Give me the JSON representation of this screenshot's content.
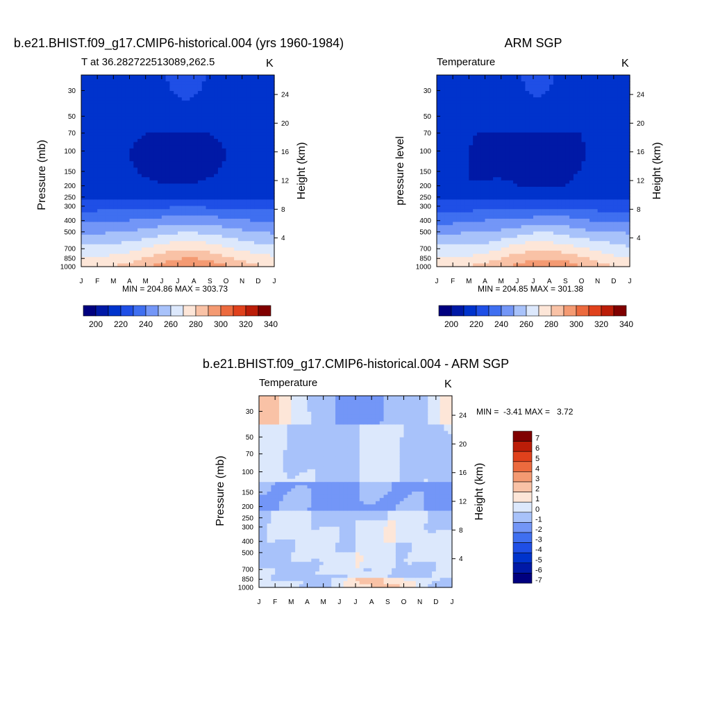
{
  "page": {
    "background": "#ffffff"
  },
  "colors": {
    "temp_scale": [
      "#00007f",
      "#0019a6",
      "#0033cc",
      "#1f4fe6",
      "#3f6ff0",
      "#7396f7",
      "#a8c2fa",
      "#dce8fc",
      "#fde6d8",
      "#f9c2a6",
      "#f49a72",
      "#ec6a3e",
      "#e0411c",
      "#bb1d08",
      "#800000"
    ],
    "diff_scale": [
      "#00007f",
      "#0019a6",
      "#0033cc",
      "#1f4fe6",
      "#3f6ff0",
      "#7396f7",
      "#a8c2fa",
      "#dce8fc",
      "#fde6d8",
      "#f9c2a6",
      "#f49a72",
      "#ec6a3e",
      "#e0411c",
      "#bb1d08",
      "#800000"
    ]
  },
  "chart_data": [
    {
      "type": "heatmap",
      "title": "b.e21.BHIST.f09_g17.CMIP6-historical.004 (yrs 1960-1984)",
      "left_title": "T at 36.282722513089,262.5",
      "units": "K",
      "ylabel": "Pressure (mb)",
      "ylabel_right": "Height (km)",
      "x_ticks": [
        "J",
        "F",
        "M",
        "A",
        "M",
        "J",
        "J",
        "A",
        "S",
        "O",
        "N",
        "D",
        "J"
      ],
      "y_ticks": [
        "30",
        "50",
        "70",
        "100",
        "150",
        "200",
        "250",
        "300",
        "400",
        "500",
        "700",
        "850",
        "1000"
      ],
      "y_ticks_right": [
        "24",
        "20",
        "16",
        "12",
        "8",
        "4"
      ],
      "min": 204.86,
      "max": 303.73,
      "minmax_text": "MIN = 204.86 MAX = 303.73",
      "colorbar_labels": [
        "200",
        "220",
        "240",
        "260",
        "280",
        "300",
        "320",
        "340"
      ]
    },
    {
      "type": "heatmap",
      "title": "ARM SGP",
      "left_title": "Temperature",
      "units": "K",
      "ylabel": "pressure level",
      "ylabel_right": "Height (km)",
      "x_ticks": [
        "J",
        "F",
        "M",
        "A",
        "M",
        "J",
        "J",
        "A",
        "S",
        "O",
        "N",
        "D",
        "J"
      ],
      "y_ticks": [
        "30",
        "50",
        "70",
        "100",
        "150",
        "200",
        "250",
        "300",
        "400",
        "500",
        "700",
        "850",
        "1000"
      ],
      "y_ticks_right": [
        "24",
        "20",
        "16",
        "12",
        "8",
        "4"
      ],
      "min": 204.85,
      "max": 301.38,
      "minmax_text": "MIN = 204.85 MAX = 301.38",
      "colorbar_labels": [
        "200",
        "220",
        "240",
        "260",
        "280",
        "300",
        "320",
        "340"
      ]
    },
    {
      "type": "heatmap",
      "title": "b.e21.BHIST.f09_g17.CMIP6-historical.004 - ARM SGP",
      "left_title": "Temperature",
      "units": "K",
      "ylabel": "Pressure (mb)",
      "ylabel_right": "Height (km)",
      "x_ticks": [
        "J",
        "F",
        "M",
        "A",
        "M",
        "J",
        "J",
        "A",
        "S",
        "O",
        "N",
        "D",
        "J"
      ],
      "y_ticks": [
        "30",
        "50",
        "70",
        "100",
        "150",
        "200",
        "250",
        "300",
        "400",
        "500",
        "700",
        "850",
        "1000"
      ],
      "y_ticks_right": [
        "24",
        "20",
        "16",
        "12",
        "8",
        "4"
      ],
      "min": -3.41,
      "max": 3.72,
      "minmax_text": "MIN =  -3.41 MAX =   3.72",
      "colorbar_labels": [
        "7",
        "6",
        "5",
        "4",
        "3",
        "2",
        "1",
        "0",
        "-1",
        "-2",
        "-3",
        "-4",
        "-5",
        "-6",
        "-7"
      ]
    }
  ]
}
